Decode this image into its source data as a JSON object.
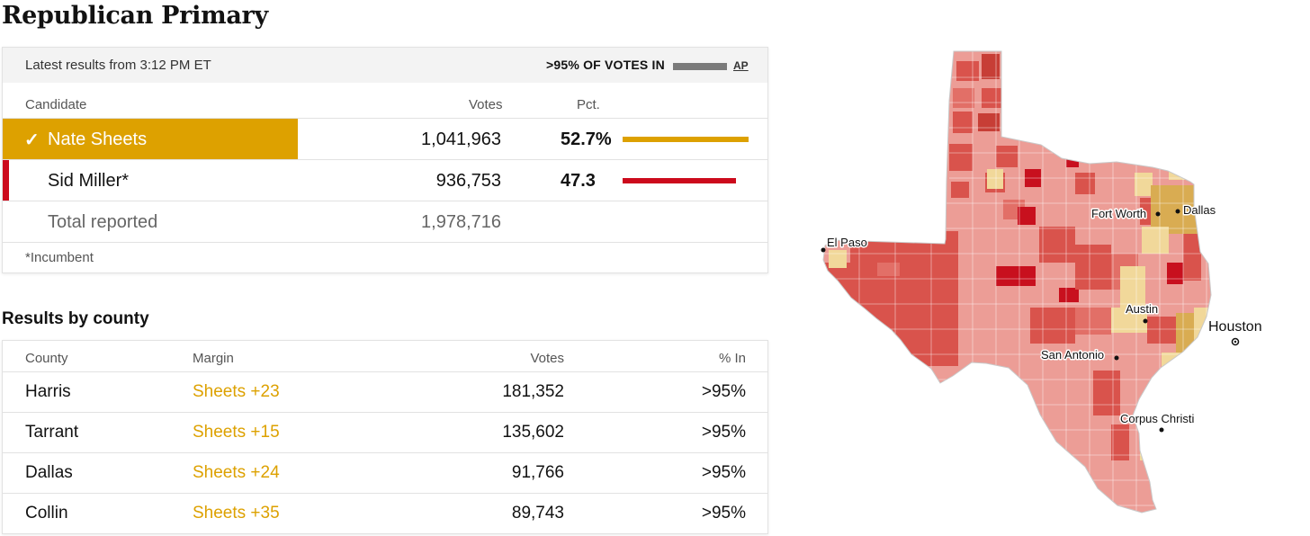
{
  "race": {
    "title": "Republican Primary"
  },
  "results": {
    "latest": "Latest results from 3:12 PM ET",
    "votes_in": ">95% OF VOTES IN",
    "source": "AP",
    "reporting_fraction": 0.95,
    "columns": {
      "candidate": "Candidate",
      "votes": "Votes",
      "pct": "Pct."
    },
    "candidates": [
      {
        "name": "Nate Sheets",
        "votes": "1,041,963",
        "pct": "52.7%",
        "pct_value": 52.7,
        "winner": true,
        "color": "#dda100"
      },
      {
        "name": "Sid Miller*",
        "votes": "936,753",
        "pct": "47.3",
        "pct_value": 47.3,
        "winner": false,
        "color": "#cc0a1c"
      }
    ],
    "total": {
      "label": "Total reported",
      "votes": "1,978,716"
    },
    "footnote": "*Incumbent"
  },
  "county": {
    "title": "Results by county",
    "columns": {
      "county": "County",
      "margin": "Margin",
      "votes": "Votes",
      "in": "% In"
    },
    "rows": [
      {
        "county": "Harris",
        "margin": "Sheets +23",
        "votes": "181,352",
        "in": ">95%"
      },
      {
        "county": "Tarrant",
        "margin": "Sheets +15",
        "votes": "135,602",
        "in": ">95%"
      },
      {
        "county": "Dallas",
        "margin": "Sheets +24",
        "votes": "91,766",
        "in": ">95%"
      },
      {
        "county": "Collin",
        "margin": "Sheets +35",
        "votes": "89,743",
        "in": ">95%"
      }
    ]
  },
  "map": {
    "cities": [
      "El Paso",
      "Fort Worth",
      "Dallas",
      "Austin",
      "Houston",
      "San Antonio",
      "Corpus Christi"
    ],
    "colors": {
      "sheets_light": "#f1d89a",
      "sheets_mid": "#d9ac52",
      "miller_light": "#ec9d96",
      "miller_mid": "#d9534c",
      "miller_dark": "#c8101e"
    }
  }
}
